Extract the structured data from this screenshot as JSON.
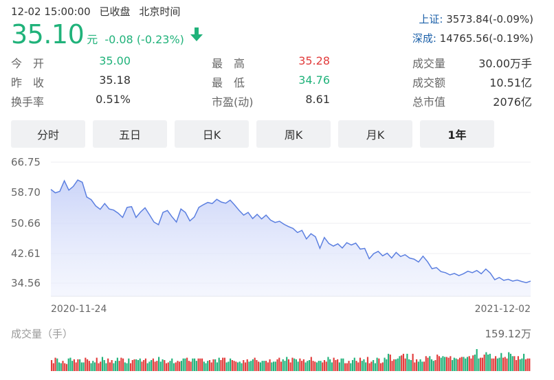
{
  "status": {
    "datetime": "12-02 15:00:00",
    "market_state": "已收盘",
    "timezone": "北京时间"
  },
  "quote": {
    "price": "35.10",
    "unit": "元",
    "change": "-0.08",
    "change_pct": "(-0.23%)",
    "direction": "down-arrow-icon"
  },
  "indices": [
    {
      "name": "上证:",
      "value": "3573.84(-0.09%)"
    },
    {
      "name": "深成:",
      "value": "14765.56(-0.19%)"
    }
  ],
  "stats": {
    "open": {
      "label": "今　开",
      "value": "35.00"
    },
    "prev_close": {
      "label": "昨　收",
      "value": "35.18"
    },
    "turnover_rate": {
      "label": "换手率",
      "value": "0.51%"
    },
    "high": {
      "label": "最　高",
      "value": "35.28"
    },
    "low": {
      "label": "最　低",
      "value": "34.76"
    },
    "pe": {
      "label": "市盈(动)",
      "value": "8.61"
    },
    "volume": {
      "label": "成交量",
      "value": "30.00万手"
    },
    "amount": {
      "label": "成交额",
      "value": "10.51亿"
    },
    "market_cap": {
      "label": "总市值",
      "value": "2076亿"
    }
  },
  "tabs": [
    {
      "label": "分时",
      "active": false
    },
    {
      "label": "五日",
      "active": false
    },
    {
      "label": "日K",
      "active": false
    },
    {
      "label": "周K",
      "active": false
    },
    {
      "label": "月K",
      "active": false
    },
    {
      "label": "1年",
      "active": true
    }
  ],
  "colors": {
    "up": "#e23b3b",
    "down": "#20b27a",
    "line": "#5b7fe0",
    "fill": "#d9e0fa",
    "link": "#1a5fa8"
  },
  "chart_data": {
    "type": "area",
    "y_ticks": [
      "66.75",
      "58.70",
      "50.66",
      "42.61",
      "34.56"
    ],
    "ylim": [
      34.56,
      66.75
    ],
    "x_labels": [
      "2020-11-24",
      "2021-12-02"
    ],
    "series": [
      {
        "values": [
          59.5,
          58.6,
          59.0,
          61.8,
          59.3,
          60.3,
          62.0,
          61.4,
          57.5,
          56.8,
          55.2,
          54.3,
          55.8,
          54.4,
          54.1,
          53.3,
          52.2,
          54.8,
          55.0,
          52.2,
          53.6,
          54.7,
          52.9,
          51.0,
          50.3,
          53.5,
          54.0,
          52.4,
          51.0,
          54.4,
          53.5,
          51.3,
          52.3,
          54.8,
          55.5,
          56.1,
          55.8,
          56.9,
          56.2,
          55.9,
          56.7,
          55.4,
          54.0,
          52.8,
          53.5,
          51.9,
          53.0,
          51.8,
          52.8,
          51.5,
          50.9,
          51.2,
          50.4,
          49.8,
          49.3,
          48.2,
          48.8,
          46.5,
          47.9,
          47.1,
          44.0,
          46.9,
          45.3,
          44.6,
          45.2,
          44.1,
          45.5,
          44.9,
          45.4,
          43.8,
          44.0,
          41.2,
          42.6,
          43.2,
          42.0,
          42.7,
          41.4,
          42.9,
          41.8,
          42.3,
          41.4,
          41.1,
          40.3,
          41.9,
          40.4,
          38.5,
          38.8,
          37.7,
          37.4,
          36.8,
          37.2,
          36.6,
          37.1,
          37.8,
          37.4,
          38.0,
          37.1,
          38.4,
          37.3,
          35.5,
          36.1,
          35.3,
          35.6,
          35.1,
          35.4,
          35.0,
          34.7,
          35.1
        ]
      }
    ],
    "volume": {
      "label": "成交量（手）",
      "max": "159.12万",
      "values": [
        14,
        10,
        17,
        16,
        11,
        10,
        13,
        10,
        9,
        16,
        17,
        13,
        15,
        11,
        15,
        15,
        11,
        11,
        17,
        15,
        13,
        10,
        13,
        11,
        17,
        10,
        12,
        18,
        14,
        10,
        16,
        11,
        14,
        10,
        13,
        17,
        13,
        17,
        16,
        11,
        10,
        16,
        10,
        14,
        15,
        15,
        14,
        16,
        12,
        14,
        16,
        10,
        12,
        14,
        16,
        12,
        13,
        18,
        12,
        15,
        14,
        10,
        11,
        13,
        16,
        10,
        11,
        13,
        12,
        13,
        16,
        16,
        17,
        13,
        12,
        16,
        16,
        13,
        16,
        16,
        16,
        12,
        10,
        13,
        14,
        11,
        15,
        15,
        11,
        17,
        14,
        17,
        17,
        11,
        12,
        16,
        14,
        13,
        12,
        11,
        12,
        10,
        14,
        11,
        15,
        12,
        13,
        15,
        17,
        14,
        12,
        11,
        13,
        13,
        13,
        11,
        15,
        11,
        12,
        12,
        15,
        17,
        12,
        15,
        13,
        18,
        15,
        11,
        17,
        16,
        15,
        12,
        16,
        13,
        15,
        11,
        13,
        14,
        18,
        13,
        12,
        11,
        13,
        13,
        11,
        14,
        12,
        18,
        15,
        11,
        17,
        14,
        15,
        11,
        16,
        16,
        10,
        10,
        13,
        10,
        14,
        17,
        13,
        11,
        17,
        13,
        15,
        11,
        18,
        10,
        12,
        14,
        10,
        17,
        16,
        10,
        11,
        17,
        15,
        22,
        21,
        13,
        15,
        15,
        16,
        19,
        20,
        22,
        16,
        22,
        15,
        14,
        22,
        11,
        15,
        12,
        15,
        12,
        12,
        19,
        17,
        19,
        15,
        13,
        14,
        21,
        19,
        17,
        19,
        18,
        18,
        17,
        19,
        14,
        17,
        16,
        15,
        17,
        18,
        18,
        16,
        18,
        19,
        16,
        20,
        21,
        28,
        16,
        17,
        17,
        21,
        24,
        21,
        22,
        16,
        16,
        19,
        16,
        17,
        23,
        17,
        18,
        16,
        24,
        22,
        19,
        19,
        14,
        19,
        15,
        16,
        22,
        15,
        16,
        16
      ]
    }
  }
}
